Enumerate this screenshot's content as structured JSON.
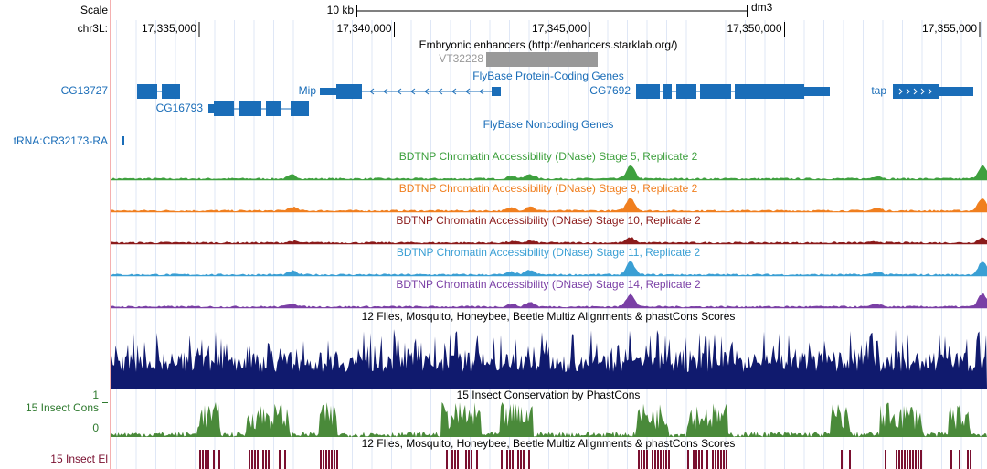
{
  "ruler": {
    "scale_label": "Scale",
    "bar_label": "10 kb",
    "assembly": "dm3",
    "chrom_label": "chr3L:",
    "ticks": [
      "17,335,000",
      "17,340,000",
      "17,345,000",
      "17,350,000",
      "17,355,000"
    ]
  },
  "enhancers": {
    "title": "Embryonic enhancers (http://enhancers.starklab.org/)",
    "feature": "VT32228"
  },
  "coding_genes": {
    "title": "FlyBase Protein-Coding Genes",
    "genes": [
      "CG13727",
      "CG16793",
      "Mip",
      "CG7692",
      "tap"
    ]
  },
  "noncoding_genes": {
    "title": "FlyBase Noncoding Genes",
    "genes": [
      "tRNA:CR32173-RA"
    ]
  },
  "dnase_tracks": [
    {
      "title": "BDTNP Chromatin Accessibility (DNase) Stage 5, Replicate 2",
      "color": "#3ea03e"
    },
    {
      "title": "BDTNP Chromatin Accessibility (DNase) Stage 9, Replicate 2",
      "color": "#f07f1f"
    },
    {
      "title": "BDTNP Chromatin Accessibility (DNase) Stage 10, Replicate 2",
      "color": "#8b1a1a"
    },
    {
      "title": "BDTNP Chromatin Accessibility (DNase) Stage 11, Replicate 2",
      "color": "#3a9fd4"
    },
    {
      "title": "BDTNP Chromatin Accessibility (DNase) Stage 14, Replicate 2",
      "color": "#7a3fa5"
    }
  ],
  "multiz": {
    "title": "12 Flies, Mosquito, Honeybee, Beetle Multiz Alignments & phastCons Scores",
    "color": "#101a6e"
  },
  "conservation": {
    "title": "15 Insect Conservation by PhastCons",
    "side_label": "15 Insect Cons",
    "max_label": "1",
    "min_label": "0",
    "color": "#4a8a3a"
  },
  "elements": {
    "title": "12 Flies, Mosquito, Honeybee, Beetle Multiz Alignments & phastCons Scores",
    "side_label": "15 Insect El",
    "color": "#7a1030"
  }
}
